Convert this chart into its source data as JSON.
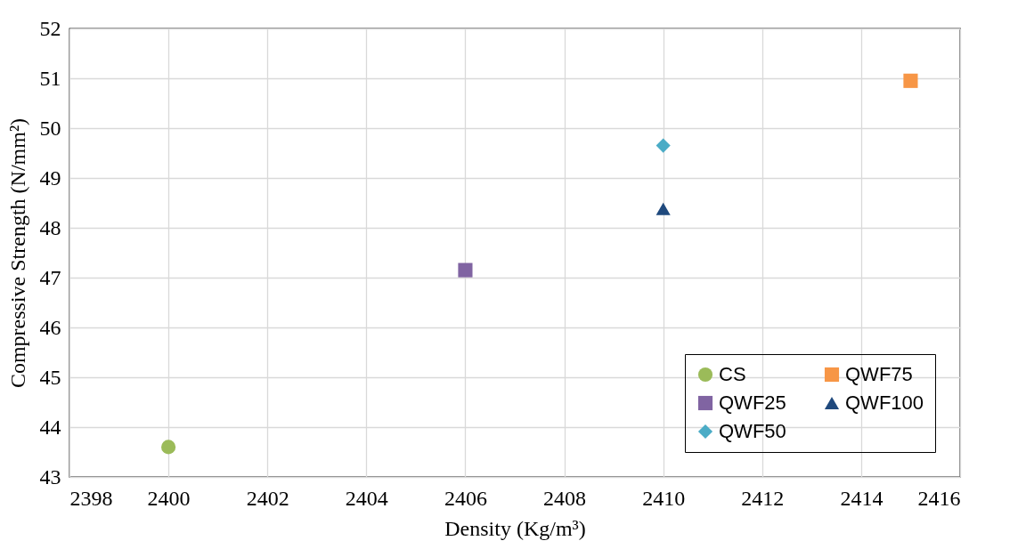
{
  "chart_data": {
    "type": "scatter",
    "xlabel": "Density (Kg/m³)",
    "ylabel": "Compressive Strength (N/mm²)",
    "xlim": [
      2398,
      2416
    ],
    "xticks": [
      2398,
      2400,
      2402,
      2404,
      2406,
      2408,
      2410,
      2412,
      2414,
      2416
    ],
    "ylim": [
      43,
      52
    ],
    "yticks": [
      43,
      44,
      45,
      46,
      47,
      48,
      49,
      50,
      51,
      52
    ],
    "grid": true,
    "legend": "bottom right",
    "series": [
      {
        "name": "CS",
        "color": "#9bbb59",
        "marker": "circle",
        "x": [
          2400
        ],
        "values": [
          43.6
        ]
      },
      {
        "name": "QWF25",
        "color": "#8064a2",
        "marker": "square",
        "x": [
          2406
        ],
        "values": [
          47.15
        ]
      },
      {
        "name": "QWF50",
        "color": "#4bacc6",
        "marker": "diamond",
        "x": [
          2410
        ],
        "values": [
          49.65
        ]
      },
      {
        "name": "QWF75",
        "color": "#f79646",
        "marker": "square",
        "x": [
          2415
        ],
        "values": [
          50.95
        ]
      },
      {
        "name": "QWF100",
        "color": "#1f497d",
        "marker": "triangle",
        "x": [
          2410
        ],
        "values": [
          48.38
        ]
      }
    ]
  }
}
